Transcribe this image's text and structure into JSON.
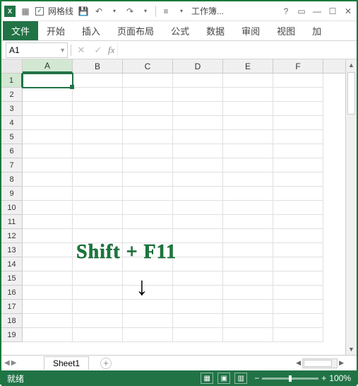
{
  "titlebar": {
    "gridlines_label": "网格线",
    "workbook_label": "工作簿...",
    "gridlines_checked": true
  },
  "tabs": {
    "file": "文件",
    "home": "开始",
    "insert": "插入",
    "page_layout": "页面布局",
    "formulas": "公式",
    "data": "数据",
    "review": "审阅",
    "view": "视图",
    "addins": "加"
  },
  "namebox": {
    "value": "A1"
  },
  "columns": [
    "A",
    "B",
    "C",
    "D",
    "E",
    "F"
  ],
  "selected_col": "A",
  "row_count": 19,
  "selected_row": 1,
  "active_cell": {
    "row": 1,
    "col": 0
  },
  "overlay": {
    "text": "Shift + F11"
  },
  "sheet": {
    "name": "Sheet1"
  },
  "status": {
    "ready": "就绪",
    "zoom": "100%"
  },
  "colors": {
    "accent": "#217346",
    "border": "#1a7a3c"
  }
}
